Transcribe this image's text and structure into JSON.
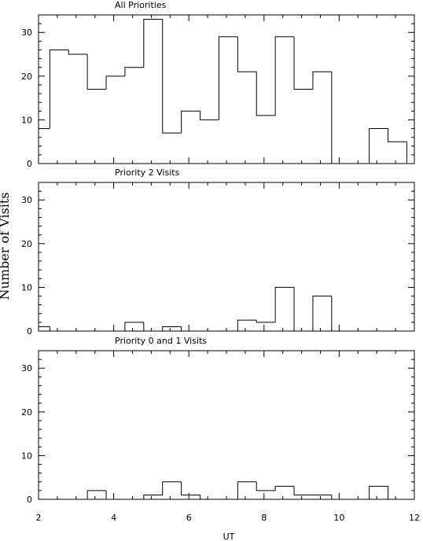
{
  "chart_data": {
    "type": "histogram",
    "shared_ylabel": "Number of Visits",
    "xlabel": "UT",
    "xlim": [
      2,
      12
    ],
    "bin_edges": [
      2.0,
      2.3,
      2.8,
      3.3,
      3.8,
      4.3,
      4.8,
      5.3,
      5.8,
      6.3,
      6.8,
      7.3,
      7.8,
      8.3,
      8.8,
      9.3,
      9.8,
      10.3,
      10.8,
      11.3,
      11.8
    ],
    "x_ticks": [
      "2",
      "4",
      "6",
      "8",
      "10",
      "12"
    ],
    "panels": [
      {
        "title": "All Priorities",
        "ylim": [
          0,
          34
        ],
        "y_ticks": [
          "0",
          "10",
          "20",
          "30"
        ],
        "values": [
          8,
          26,
          25,
          17,
          20,
          22,
          33,
          7,
          12,
          10,
          29,
          21,
          11,
          29,
          17,
          21,
          0,
          0,
          8,
          5
        ]
      },
      {
        "title": "Priority 2 Visits",
        "ylim": [
          0,
          34
        ],
        "y_ticks": [
          "0",
          "10",
          "20",
          "30"
        ],
        "values": [
          1,
          0,
          0,
          0,
          0,
          2,
          0,
          1,
          0,
          0,
          0,
          2.5,
          2,
          10,
          0,
          8,
          0,
          0,
          0,
          0
        ]
      },
      {
        "title": "Priority 0 and 1 Visits",
        "ylim": [
          0,
          34
        ],
        "y_ticks": [
          "0",
          "10",
          "20",
          "30"
        ],
        "values": [
          0,
          0,
          0,
          2,
          0,
          0,
          1,
          4,
          1,
          0,
          0,
          4,
          2,
          3,
          1,
          1,
          0,
          0,
          3,
          0
        ]
      }
    ]
  }
}
